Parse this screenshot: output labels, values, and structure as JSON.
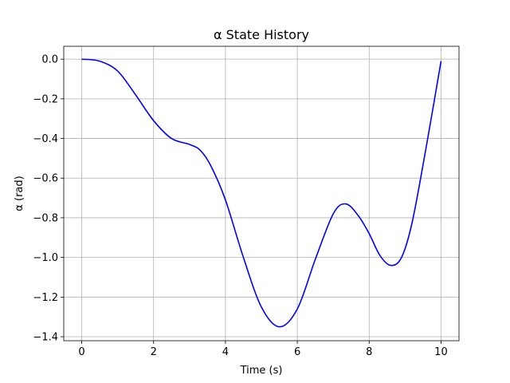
{
  "chart_data": {
    "type": "line",
    "title": "α State History",
    "xlabel": "Time (s)",
    "ylabel": "α (rad)",
    "xlim": [
      -0.5,
      10.5
    ],
    "ylim": [
      -1.42,
      0.065
    ],
    "grid": true,
    "xticks": [
      0,
      2,
      4,
      6,
      8,
      10
    ],
    "yticks": [
      0.0,
      -0.2,
      -0.4,
      -0.6,
      -0.8,
      -1.0,
      -1.2,
      -1.4
    ],
    "xtick_labels": [
      "0",
      "2",
      "4",
      "6",
      "8",
      "10"
    ],
    "ytick_labels": [
      "0.0",
      "−0.2",
      "−0.4",
      "−0.6",
      "−0.8",
      "−1.0",
      "−1.2",
      "−1.4"
    ],
    "series": [
      {
        "color": "#0000ff",
        "x": [
          0,
          0.5,
          1.0,
          1.5,
          2.0,
          2.5,
          3.0,
          3.3,
          3.6,
          4.0,
          4.5,
          5.0,
          5.5,
          6.0,
          6.5,
          7.0,
          7.35,
          7.7,
          8.0,
          8.3,
          8.6,
          8.9,
          9.2,
          9.6,
          10.0
        ],
        "y": [
          0.0,
          -0.01,
          -0.06,
          -0.18,
          -0.31,
          -0.4,
          -0.43,
          -0.46,
          -0.54,
          -0.71,
          -1.0,
          -1.25,
          -1.35,
          -1.26,
          -1.01,
          -0.78,
          -0.73,
          -0.79,
          -0.88,
          -0.99,
          -1.04,
          -1.0,
          -0.82,
          -0.43,
          -0.01
        ]
      }
    ]
  }
}
